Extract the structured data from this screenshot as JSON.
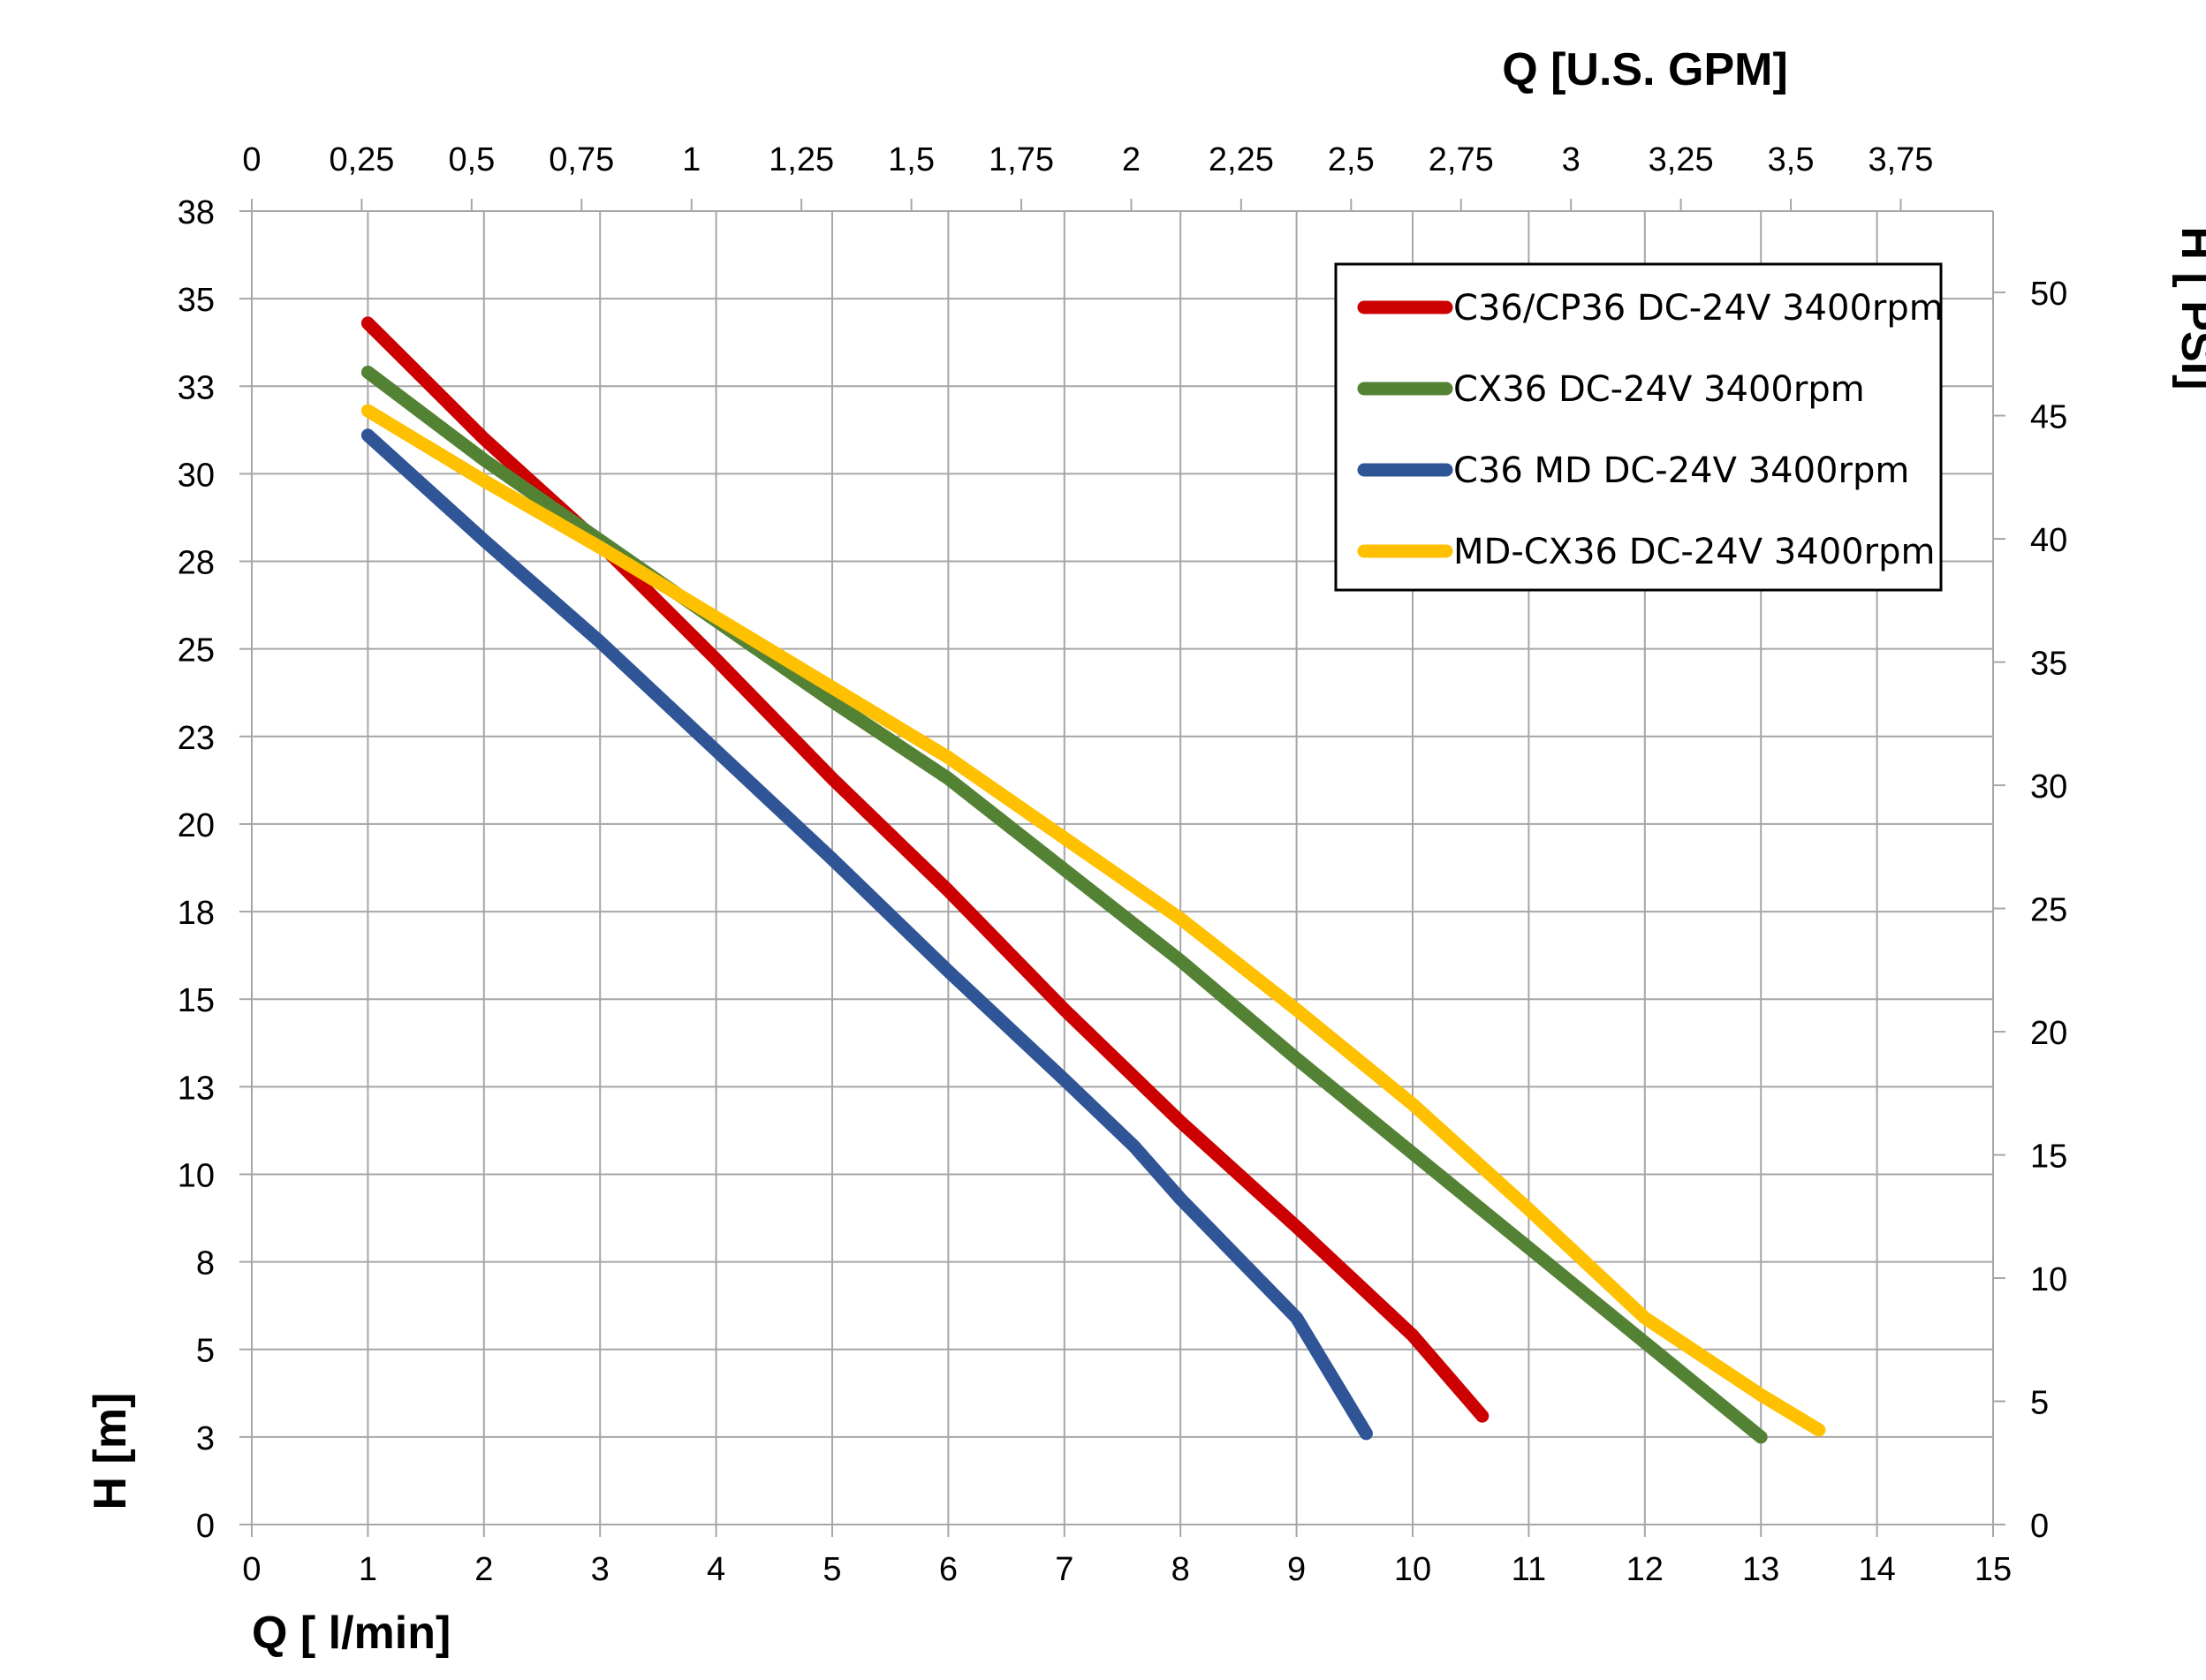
{
  "chart_data": {
    "type": "line",
    "xlabel": "Q [ l/min]",
    "ylabel": "H [m]",
    "x2label": "Q  [U.S. GPM]",
    "y2label": "H [ PSI]",
    "xlim": [
      0,
      15
    ],
    "ylim": [
      0,
      37.5
    ],
    "x2lim": [
      0,
      3.96
    ],
    "y2lim": [
      0,
      53.3
    ],
    "grid": true,
    "legend_position": "top-right",
    "x_ticks": [
      "0",
      "1",
      "2",
      "3",
      "4",
      "5",
      "6",
      "7",
      "8",
      "9",
      "10",
      "11",
      "12",
      "13",
      "14",
      "15"
    ],
    "y_ticks": [
      "0",
      "3",
      "5",
      "8",
      "10",
      "13",
      "15",
      "18",
      "20",
      "23",
      "25",
      "28",
      "30",
      "33",
      "35",
      "38"
    ],
    "x2_ticks": [
      "0",
      "0,25",
      "0,5",
      "0,75",
      "1",
      "1,25",
      "1,5",
      "1,75",
      "2",
      "2,25",
      "2,5",
      "2,75",
      "3",
      "3,25",
      "3,5",
      "3,75"
    ],
    "y2_ticks": [
      "0",
      "5",
      "10",
      "15",
      "20",
      "25",
      "30",
      "35",
      "40",
      "45",
      "50"
    ],
    "series": [
      {
        "name": "C36/CP36 DC-24V 3400rpm",
        "color": "#cc0000",
        "points": [
          [
            1,
            34.3
          ],
          [
            2,
            31.0
          ],
          [
            3,
            28.0
          ],
          [
            4,
            24.7
          ],
          [
            5,
            21.3
          ],
          [
            6,
            18.1
          ],
          [
            7,
            14.7
          ],
          [
            8,
            11.5
          ],
          [
            9,
            8.5
          ],
          [
            10,
            5.4
          ],
          [
            10.6,
            3.1
          ]
        ]
      },
      {
        "name": "CX36 DC-24V 3400rpm",
        "color": "#548235",
        "points": [
          [
            1,
            32.9
          ],
          [
            2,
            30.4
          ],
          [
            3,
            28.1
          ],
          [
            4,
            25.8
          ],
          [
            5,
            23.5
          ],
          [
            6,
            21.3
          ],
          [
            7,
            18.7
          ],
          [
            8,
            16.1
          ],
          [
            9,
            13.3
          ],
          [
            10,
            10.6
          ],
          [
            11,
            7.9
          ],
          [
            12,
            5.2
          ],
          [
            13,
            2.5
          ]
        ]
      },
      {
        "name": "C36 MD DC-24V 3400rpm",
        "color": "#2f5597",
        "points": [
          [
            1,
            31.1
          ],
          [
            2,
            28.1
          ],
          [
            3,
            25.2
          ],
          [
            4,
            22.1
          ],
          [
            5,
            19.0
          ],
          [
            6,
            15.8
          ],
          [
            7,
            12.7
          ],
          [
            7.6,
            10.8
          ],
          [
            8,
            9.3
          ],
          [
            9,
            5.9
          ],
          [
            9.6,
            2.6
          ]
        ]
      },
      {
        "name": "MD-CX36 DC-24V 3400rpm",
        "color": "#ffc000",
        "points": [
          [
            1,
            31.8
          ],
          [
            2,
            29.8
          ],
          [
            3,
            27.9
          ],
          [
            4,
            25.9
          ],
          [
            5,
            23.9
          ],
          [
            6,
            21.9
          ],
          [
            7,
            19.6
          ],
          [
            8,
            17.3
          ],
          [
            9,
            14.7
          ],
          [
            10,
            12.0
          ],
          [
            11,
            9.0
          ],
          [
            12,
            5.9
          ],
          [
            13,
            3.7
          ],
          [
            13.5,
            2.7
          ]
        ]
      }
    ]
  }
}
